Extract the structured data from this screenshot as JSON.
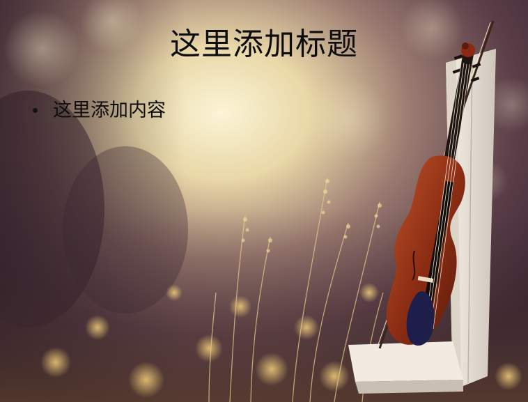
{
  "slide": {
    "title": "这里添加标题",
    "bullets": [
      {
        "text": "这里添加内容"
      }
    ]
  },
  "background": {
    "subject": "violin-leaning-on-white-chair",
    "palette": [
      "#4a3338",
      "#e8d9a6",
      "#8c3a1e",
      "#d9b06a"
    ]
  }
}
